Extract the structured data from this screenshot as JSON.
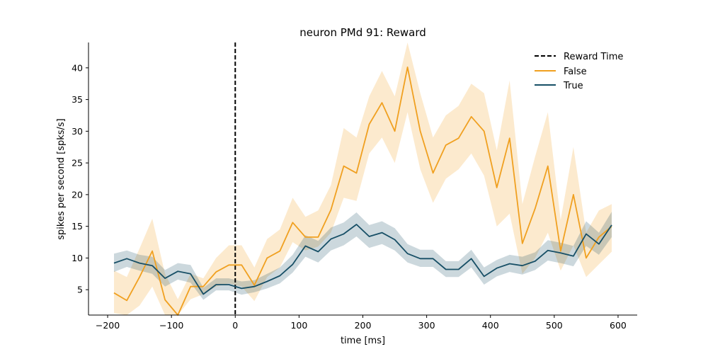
{
  "chart_data": {
    "type": "line",
    "title": "neuron PMd 91: Reward",
    "xlabel": "time [ms]",
    "ylabel": "spikes per second [spks/s]",
    "xlim": [
      -230,
      630
    ],
    "ylim": [
      1,
      44
    ],
    "xticks": [
      -200,
      -100,
      0,
      100,
      200,
      300,
      400,
      500,
      600
    ],
    "xtick_labels": [
      "−200",
      "−100",
      "0",
      "100",
      "200",
      "300",
      "400",
      "500",
      "600"
    ],
    "yticks": [
      5,
      10,
      15,
      20,
      25,
      30,
      35,
      40
    ],
    "ytick_labels": [
      "5",
      "10",
      "15",
      "20",
      "25",
      "30",
      "35",
      "40"
    ],
    "grid": false,
    "legend_position": "top-right",
    "vline": {
      "name": "Reward Time",
      "x": 0,
      "color": "#000000",
      "style": "dashed"
    },
    "x": [
      -190,
      -170,
      -150,
      -130,
      -110,
      -90,
      -70,
      -50,
      -30,
      -10,
      10,
      30,
      50,
      70,
      90,
      110,
      130,
      150,
      170,
      190,
      210,
      230,
      250,
      270,
      290,
      310,
      330,
      350,
      370,
      390,
      410,
      430,
      450,
      470,
      490,
      510,
      530,
      550,
      570,
      590
    ],
    "series": [
      {
        "name": "False",
        "color": "#f0a020",
        "values": [
          4.5,
          3.3,
          7.0,
          11.1,
          3.4,
          1.0,
          5.5,
          5.5,
          7.8,
          8.9,
          8.9,
          5.7,
          10.0,
          11.1,
          15.6,
          13.3,
          13.3,
          17.6,
          24.5,
          23.4,
          31.1,
          34.5,
          30.0,
          40.1,
          30.0,
          23.4,
          27.8,
          28.9,
          32.3,
          30.0,
          21.1,
          28.9,
          12.3,
          17.8,
          24.5,
          11.1,
          20.0,
          10.0,
          13.3,
          15.0
        ],
        "lower": [
          1.3,
          0.5,
          2.5,
          5.5,
          0.5,
          0.2,
          3.5,
          4.3,
          5.5,
          6.0,
          5.5,
          3.2,
          7.0,
          8.5,
          12.5,
          11.2,
          11.8,
          14.0,
          19.5,
          19.0,
          26.5,
          29.0,
          25.0,
          33.0,
          24.0,
          18.7,
          22.5,
          24.0,
          26.5,
          23.0,
          15.0,
          17.0,
          7.5,
          10.0,
          14.0,
          8.0,
          12.0,
          7.0,
          9.0,
          11.0
        ],
        "upper": [
          8.0,
          7.0,
          11.5,
          16.2,
          7.5,
          3.5,
          7.5,
          6.8,
          10.0,
          12.0,
          12.0,
          8.5,
          13.0,
          14.5,
          19.5,
          16.5,
          17.5,
          21.5,
          30.5,
          29.0,
          35.5,
          39.5,
          35.5,
          45.0,
          36.0,
          29.0,
          32.5,
          34.0,
          37.5,
          36.0,
          27.0,
          38.0,
          18.5,
          26.0,
          33.0,
          16.0,
          27.5,
          14.0,
          17.5,
          18.5
        ]
      },
      {
        "name": "True",
        "color": "#174f66",
        "values": [
          9.2,
          9.9,
          9.2,
          8.8,
          6.8,
          7.9,
          7.5,
          4.3,
          5.8,
          5.8,
          5.2,
          5.5,
          6.3,
          7.2,
          9.0,
          11.9,
          11.0,
          13.0,
          13.8,
          15.3,
          13.4,
          14.0,
          12.9,
          10.7,
          9.9,
          9.9,
          8.2,
          8.2,
          9.9,
          7.1,
          8.4,
          9.1,
          8.8,
          9.5,
          11.2,
          10.8,
          10.3,
          13.8,
          12.2,
          15.2
        ],
        "lower": [
          7.8,
          8.6,
          8.0,
          7.5,
          5.5,
          6.6,
          6.1,
          3.4,
          4.9,
          4.9,
          4.2,
          4.6,
          5.2,
          6.0,
          7.7,
          10.2,
          9.3,
          11.2,
          12.0,
          13.4,
          11.6,
          12.2,
          11.2,
          9.3,
          8.6,
          8.6,
          7.0,
          7.0,
          8.5,
          5.8,
          7.1,
          7.8,
          7.4,
          8.1,
          9.6,
          9.2,
          8.7,
          11.9,
          10.5,
          13.3
        ],
        "upper": [
          10.7,
          11.2,
          10.5,
          10.2,
          8.1,
          9.2,
          8.9,
          5.3,
          6.8,
          6.8,
          6.3,
          6.5,
          7.5,
          8.5,
          10.5,
          13.6,
          12.7,
          14.8,
          15.6,
          17.2,
          15.2,
          15.8,
          14.7,
          12.2,
          11.3,
          11.3,
          9.5,
          9.5,
          11.3,
          8.5,
          9.7,
          10.5,
          10.2,
          10.9,
          12.8,
          12.4,
          11.9,
          15.8,
          14.0,
          17.3
        ]
      }
    ]
  }
}
